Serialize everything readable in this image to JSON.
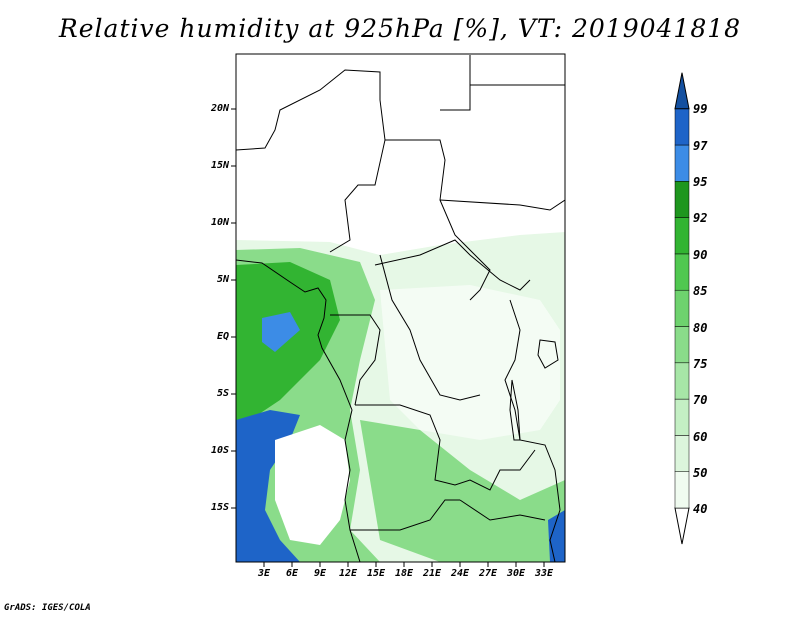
{
  "title": "Relative humidity at 925hPa [%], VT: 2019041818",
  "credit": "GrADS: IGES/COLA",
  "lat_labels": [
    "20N",
    "15N",
    "10N",
    "5N",
    "EQ",
    "5S",
    "10S",
    "15S"
  ],
  "lon_labels": [
    "3E",
    "6E",
    "9E",
    "12E",
    "15E",
    "18E",
    "21E",
    "24E",
    "27E",
    "30E",
    "33E"
  ],
  "colorbar": {
    "labels": [
      "99",
      "97",
      "95",
      "92",
      "90",
      "85",
      "80",
      "75",
      "70",
      "60",
      "50",
      "40"
    ],
    "colors": [
      "#ffffff",
      "#f0fbf0",
      "#dcf5dc",
      "#c4efc4",
      "#a7e6a7",
      "#8adc8a",
      "#6ed26e",
      "#50c850",
      "#32b432",
      "#1e961e",
      "#3c8ce6",
      "#1e64c8",
      "#1450a0"
    ]
  },
  "colors": {
    "water_blue": "#1e64c8",
    "land_white": "#ffffff",
    "boundary": "#000000"
  }
}
